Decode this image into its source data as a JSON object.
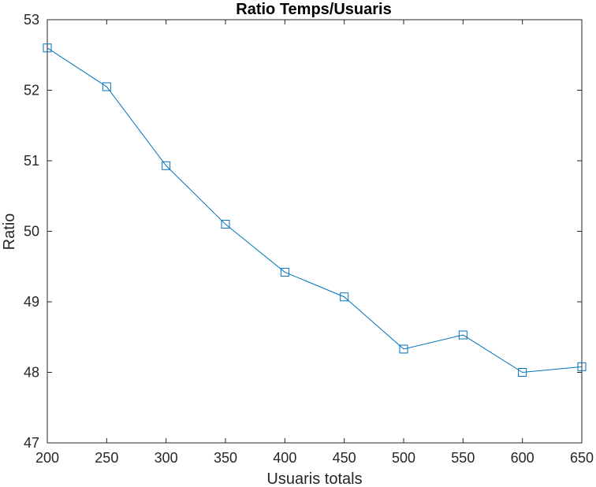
{
  "chart_data": {
    "type": "line",
    "title": "Ratio Temps/Usuaris",
    "xlabel": "Usuaris totals",
    "ylabel": "Ratio",
    "x": [
      200,
      250,
      300,
      350,
      400,
      450,
      500,
      550,
      600,
      650
    ],
    "series": [
      {
        "values": [
          52.6,
          52.05,
          50.93,
          50.1,
          49.42,
          49.07,
          48.33,
          48.53,
          48.0,
          48.08
        ],
        "color": "#0072BD",
        "marker": "square"
      }
    ],
    "xlim": [
      200,
      650
    ],
    "ylim": [
      47,
      53
    ],
    "xticks": [
      200,
      250,
      300,
      350,
      400,
      450,
      500,
      550,
      600,
      650
    ],
    "yticks": [
      47,
      48,
      49,
      50,
      51,
      52,
      53
    ],
    "grid": false,
    "legend": "none",
    "axis_color": "#262626",
    "background": "#ffffff"
  }
}
